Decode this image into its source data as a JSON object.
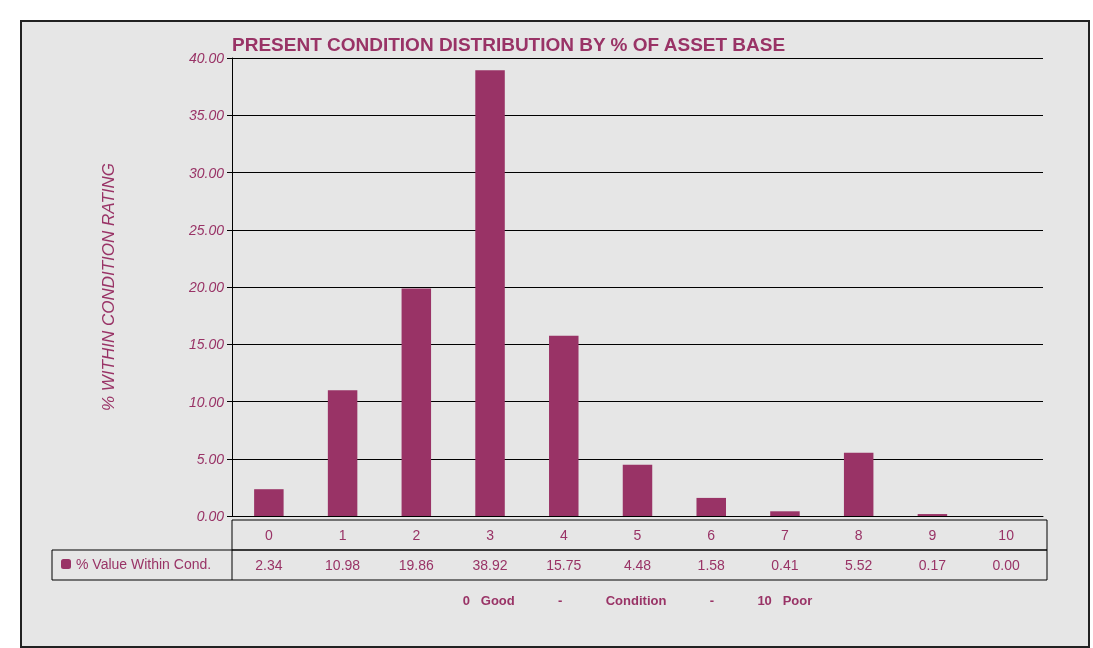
{
  "chart_data": {
    "type": "bar",
    "title": "PRESENT CONDITION DISTRIBUTION BY % OF ASSET BASE",
    "ylabel": "% WITHIN CONDITION RATING",
    "xlabel": "0   Good            -            Condition            -            10   Poor",
    "categories": [
      "0",
      "1",
      "2",
      "3",
      "4",
      "5",
      "6",
      "7",
      "8",
      "9",
      "10"
    ],
    "series": [
      {
        "name": "% Value Within Cond.",
        "color": "#993366",
        "values": [
          2.34,
          10.98,
          19.86,
          38.92,
          15.75,
          4.48,
          1.58,
          0.41,
          5.52,
          0.17,
          0
        ],
        "value_labels": [
          "2.34",
          "10.98",
          "19.86",
          "38.92",
          "15.75",
          "4.48",
          "1.58",
          "0.41",
          "5.52",
          "0.17",
          "0.00"
        ]
      }
    ],
    "ylim": [
      0,
      40
    ],
    "yticks": [
      {
        "value": 0,
        "label": "0.00"
      },
      {
        "value": 5,
        "label": "5.00"
      },
      {
        "value": 10,
        "label": "10.00"
      },
      {
        "value": 15,
        "label": "15.00"
      },
      {
        "value": 20,
        "label": "20.00"
      },
      {
        "value": 25,
        "label": "25.00"
      },
      {
        "value": 30,
        "label": "30.00"
      },
      {
        "value": 35,
        "label": "35.00"
      },
      {
        "value": 40,
        "label": "40.00"
      }
    ],
    "grid": "y",
    "legend": "bottom left"
  }
}
